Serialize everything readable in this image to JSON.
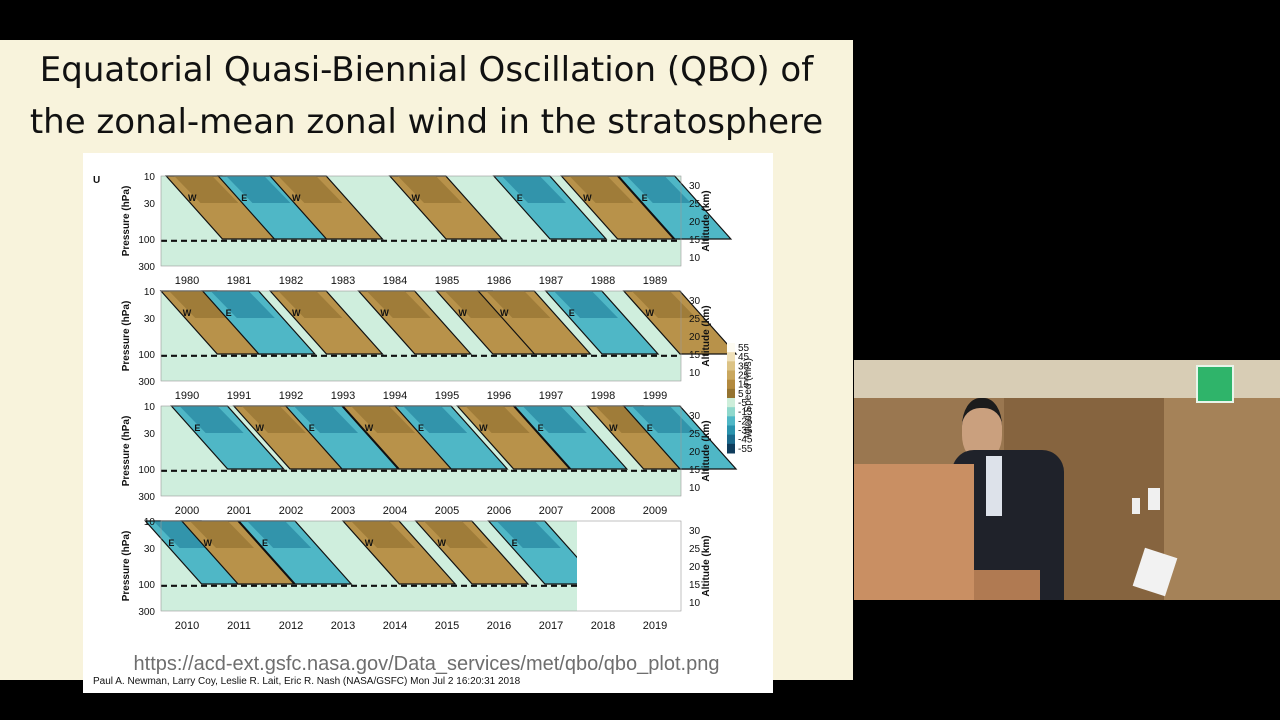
{
  "slide": {
    "title_line1": "Equatorial Quasi-Biennial Oscillation (QBO) of",
    "title_line2": "the zonal-mean zonal wind in the stratosphere",
    "source_url": "https://acd-ext.gsfc.nasa.gov/Data_services/met/qbo/qbo_plot.png"
  },
  "colors": {
    "slide_background": "#f8f3dc",
    "westerly": "#b8924a",
    "westerly_dark": "#8a6a2c",
    "easterly": "#4fb7c6",
    "easterly_dark": "#1b7895",
    "weak": "#cfeedd"
  },
  "chart_data": {
    "type": "heatmap",
    "variable_label": "U",
    "left_axis": {
      "label": "Pressure (hPa)",
      "ticks": [
        "10",
        "30",
        "100",
        "300"
      ]
    },
    "right_axis": {
      "label": "Altitude (km)",
      "ticks": [
        "30",
        "25",
        "20",
        "15",
        "10"
      ]
    },
    "colorbar": {
      "label": "Wind Speed (m/s)",
      "ticks": [
        "55",
        "45",
        "35",
        "25",
        "15",
        "5",
        "-5",
        "-15",
        "-25",
        "-35",
        "-45",
        "-55"
      ]
    },
    "panels": [
      {
        "years": [
          "1980",
          "1981",
          "1982",
          "1983",
          "1984",
          "1985",
          "1986",
          "1987",
          "1988",
          "1989"
        ],
        "phases": [
          {
            "label": "W",
            "year": 1980.6
          },
          {
            "label": "E",
            "year": 1981.6
          },
          {
            "label": "W",
            "year": 1982.6
          },
          {
            "label": "W",
            "year": 1984.9
          },
          {
            "label": "E",
            "year": 1986.9
          },
          {
            "label": "W",
            "year": 1988.2
          },
          {
            "label": "E",
            "year": 1989.3
          }
        ]
      },
      {
        "years": [
          "1990",
          "1991",
          "1992",
          "1993",
          "1994",
          "1995",
          "1996",
          "1997",
          "1998",
          "1999"
        ],
        "phases": [
          {
            "label": "W",
            "year": 1990.5
          },
          {
            "label": "E",
            "year": 1991.3
          },
          {
            "label": "W",
            "year": 1992.6
          },
          {
            "label": "W",
            "year": 1994.3
          },
          {
            "label": "W",
            "year": 1995.8
          },
          {
            "label": "W",
            "year": 1996.6
          },
          {
            "label": "E",
            "year": 1997.9
          },
          {
            "label": "W",
            "year": 1999.4
          }
        ]
      },
      {
        "years": [
          "2000",
          "2001",
          "2002",
          "2003",
          "2004",
          "2005",
          "2006",
          "2007",
          "2008",
          "2009"
        ],
        "phases": [
          {
            "label": "E",
            "year": 2000.7
          },
          {
            "label": "W",
            "year": 2001.9
          },
          {
            "label": "E",
            "year": 2002.9
          },
          {
            "label": "W",
            "year": 2004.0
          },
          {
            "label": "E",
            "year": 2005.0
          },
          {
            "label": "W",
            "year": 2006.2
          },
          {
            "label": "E",
            "year": 2007.3
          },
          {
            "label": "W",
            "year": 2008.7
          },
          {
            "label": "E",
            "year": 2009.4
          }
        ]
      },
      {
        "years": [
          "2010",
          "2011",
          "2012",
          "2013",
          "2014",
          "2015",
          "2016",
          "2017",
          "2018",
          "2019"
        ],
        "data_end_year": 2018,
        "phases": [
          {
            "label": "E",
            "year": 2010.2
          },
          {
            "label": "W",
            "year": 2010.9
          },
          {
            "label": "E",
            "year": 2012.0
          },
          {
            "label": "W",
            "year": 2014.0
          },
          {
            "label": "W",
            "year": 2015.4
          },
          {
            "label": "E",
            "year": 2016.8
          }
        ]
      }
    ],
    "credit": "Paul A. Newman, Larry Coy, Leslie R. Lait, Eric R. Nash (NASA/GSFC) Mon Jul  2 16:20:31 2018"
  }
}
